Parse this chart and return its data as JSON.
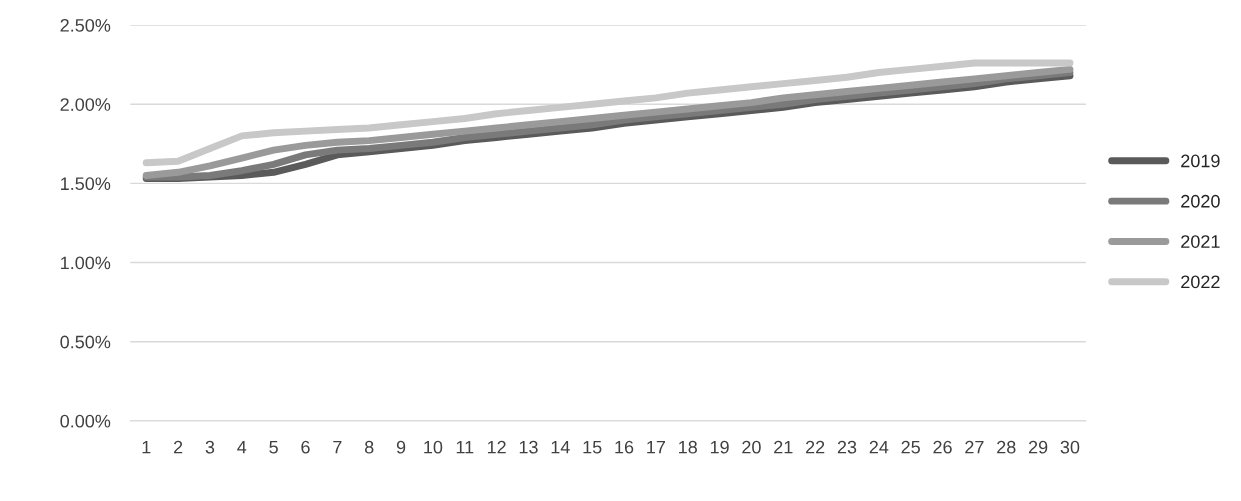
{
  "chart_data": {
    "type": "line",
    "categories": [
      "1",
      "2",
      "3",
      "4",
      "5",
      "6",
      "7",
      "8",
      "9",
      "10",
      "11",
      "12",
      "13",
      "14",
      "15",
      "16",
      "17",
      "18",
      "19",
      "20",
      "21",
      "22",
      "23",
      "24",
      "25",
      "26",
      "27",
      "28",
      "29",
      "30"
    ],
    "series": [
      {
        "name": "2019",
        "color": "#5a5a5a",
        "values": [
          1.53,
          1.53,
          1.54,
          1.55,
          1.57,
          1.62,
          1.68,
          1.7,
          1.72,
          1.74,
          1.77,
          1.79,
          1.81,
          1.83,
          1.85,
          1.88,
          1.9,
          1.92,
          1.94,
          1.96,
          1.98,
          2.01,
          2.03,
          2.05,
          2.07,
          2.09,
          2.11,
          2.14,
          2.16,
          2.18
        ]
      },
      {
        "name": "2020",
        "color": "#7a7a7a",
        "values": [
          1.54,
          1.54,
          1.55,
          1.58,
          1.62,
          1.68,
          1.71,
          1.72,
          1.74,
          1.76,
          1.79,
          1.81,
          1.83,
          1.85,
          1.87,
          1.9,
          1.92,
          1.94,
          1.96,
          1.98,
          2.0,
          2.03,
          2.05,
          2.07,
          2.09,
          2.11,
          2.13,
          2.16,
          2.18,
          2.2
        ]
      },
      {
        "name": "2021",
        "color": "#9a9a9a",
        "values": [
          1.55,
          1.57,
          1.61,
          1.66,
          1.71,
          1.74,
          1.76,
          1.77,
          1.79,
          1.81,
          1.83,
          1.85,
          1.87,
          1.89,
          1.91,
          1.93,
          1.95,
          1.97,
          1.99,
          2.01,
          2.04,
          2.06,
          2.08,
          2.1,
          2.12,
          2.14,
          2.16,
          2.18,
          2.2,
          2.22
        ]
      },
      {
        "name": "2022",
        "color": "#c8c8c8",
        "values": [
          1.63,
          1.64,
          1.72,
          1.8,
          1.82,
          1.83,
          1.84,
          1.85,
          1.87,
          1.89,
          1.91,
          1.94,
          1.96,
          1.98,
          2.0,
          2.02,
          2.04,
          2.07,
          2.09,
          2.11,
          2.13,
          2.15,
          2.17,
          2.2,
          2.22,
          2.24,
          2.26,
          2.26,
          2.26,
          2.26
        ]
      }
    ],
    "ylim": [
      0,
      2.5
    ],
    "yticks": [
      {
        "value": 0,
        "label": "0.00%"
      },
      {
        "value": 0.5,
        "label": "0.50%"
      },
      {
        "value": 1.0,
        "label": "1.00%"
      },
      {
        "value": 1.5,
        "label": "1.50%"
      },
      {
        "value": 2.0,
        "label": "2.00%"
      },
      {
        "value": 2.5,
        "label": "2.50%"
      }
    ],
    "grid": "y",
    "legend": "right",
    "marker": "none",
    "line_style": "solid"
  }
}
